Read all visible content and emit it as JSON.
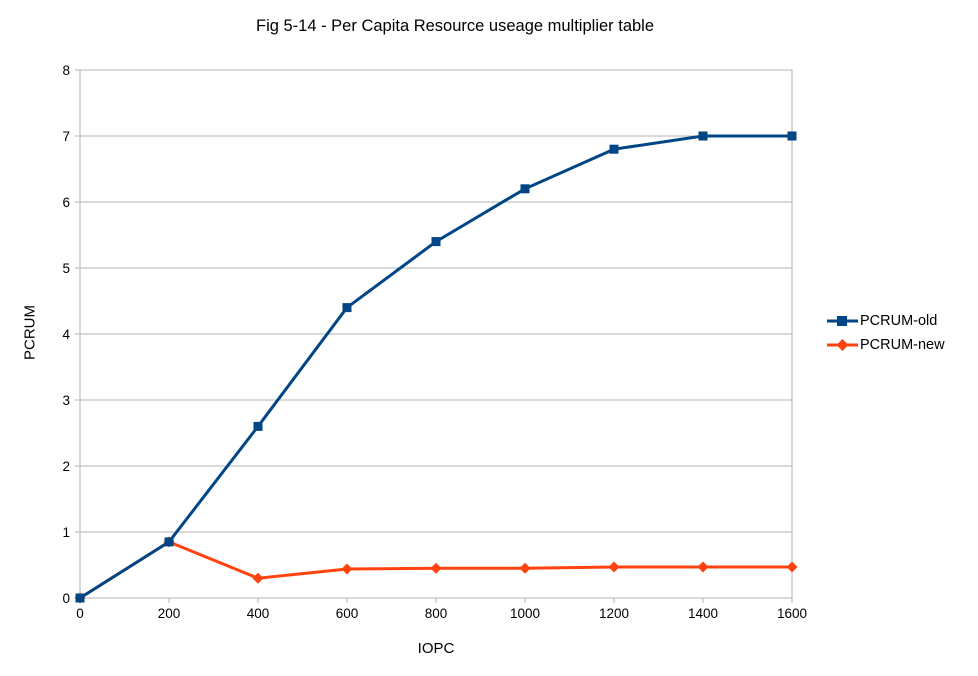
{
  "chart_data": {
    "type": "line",
    "title": "Fig 5-14 - Per Capita Resource useage multiplier table",
    "xlabel": "IOPC",
    "ylabel": "PCRUM",
    "x": [
      0,
      200,
      400,
      600,
      800,
      1000,
      1200,
      1400,
      1600
    ],
    "series": [
      {
        "name": "PCRUM-old",
        "marker": "square",
        "color": "#004586",
        "values": [
          0,
          0.85,
          2.6,
          4.4,
          5.4,
          6.2,
          6.8,
          7.0,
          7.0
        ]
      },
      {
        "name": "PCRUM-new",
        "marker": "diamond",
        "color": "#FF420E",
        "values": [
          0,
          0.85,
          0.3,
          0.44,
          0.45,
          0.45,
          0.47,
          0.47,
          0.47
        ]
      }
    ],
    "xlim": [
      0,
      1600
    ],
    "ylim": [
      0,
      8
    ],
    "x_ticks": [
      0,
      200,
      400,
      600,
      800,
      1000,
      1200,
      1400,
      1600
    ],
    "y_ticks": [
      0,
      1,
      2,
      3,
      4,
      5,
      6,
      7,
      8
    ],
    "grid": "horizontal",
    "legend_position": "right",
    "colors": {
      "gridline": "#b3b3b3",
      "axis": "#b3b3b3",
      "tick_text": "#000000",
      "background": "#ffffff"
    }
  }
}
